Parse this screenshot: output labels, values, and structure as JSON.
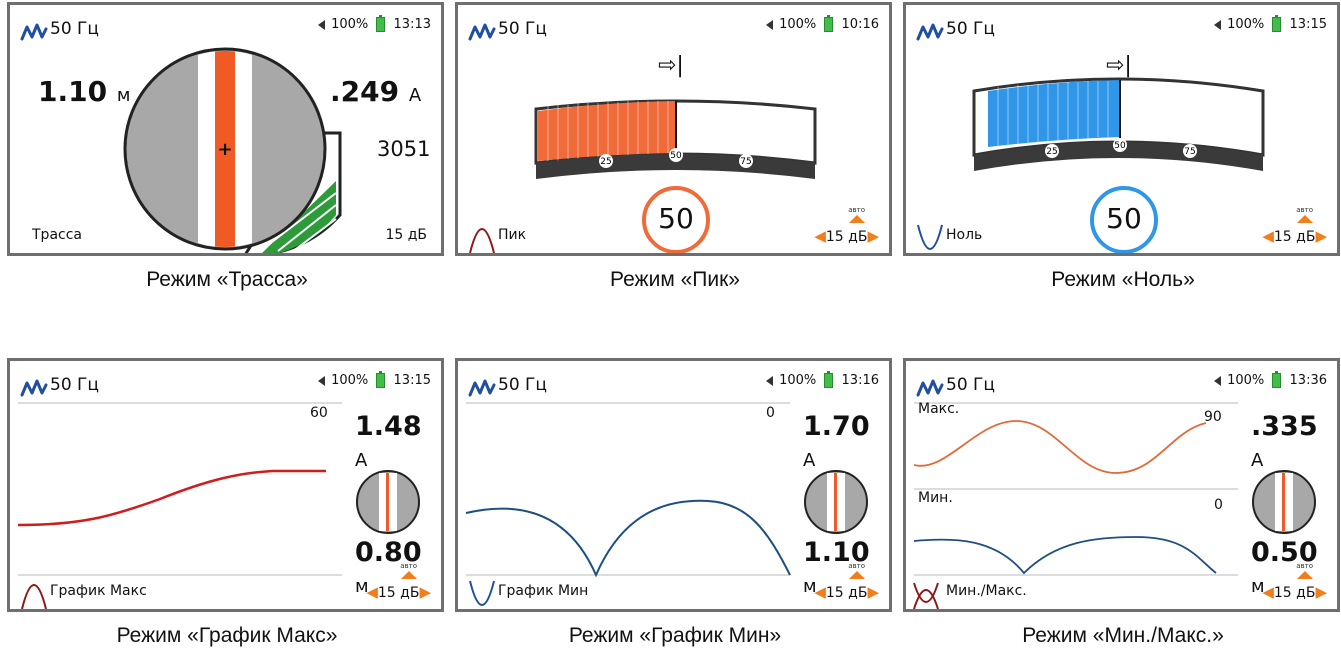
{
  "panels": [
    {
      "id": "trassa",
      "freq": "50 Гц",
      "battery": "100%",
      "time": "13:13",
      "depth_value": "1.10",
      "depth_unit": "м",
      "current_value": ".249",
      "current_unit": "A",
      "signal": "3051",
      "mode": "Трасса",
      "gain": "15 дБ",
      "caption": "Режим «Трасса»"
    },
    {
      "id": "pik",
      "freq": "50 Гц",
      "battery": "100%",
      "time": "10:16",
      "direction": "⇨|",
      "scale_ticks": [
        "25",
        "50",
        "75"
      ],
      "reading": "50",
      "reading_level": 0.5,
      "mode": "Пик",
      "auto": "авто",
      "gain": "15 дБ",
      "caption": "Режим «Пик»",
      "accent": "#f06a3a"
    },
    {
      "id": "nol",
      "freq": "50 Гц",
      "battery": "100%",
      "time": "13:15",
      "direction": "⇨|",
      "scale_ticks": [
        "25",
        "50",
        "75"
      ],
      "reading": "50",
      "reading_level": 0.5,
      "mode": "Ноль",
      "auto": "авто",
      "gain": "15 дБ",
      "caption": "Режим «Ноль»",
      "accent": "#2f96e8"
    },
    {
      "id": "graph_max",
      "freq": "50 Гц",
      "battery": "100%",
      "time": "13:15",
      "scale_label": "60",
      "current_value": "1.48",
      "current_unit": "A",
      "depth_value": "0.80",
      "depth_unit": "м",
      "mode": "График Макс",
      "auto": "авто",
      "gain": "15 дБ",
      "caption": "Режим «График Макс»"
    },
    {
      "id": "graph_min",
      "freq": "50 Гц",
      "battery": "100%",
      "time": "13:16",
      "scale_label": "0",
      "current_value": "1.70",
      "current_unit": "A",
      "depth_value": "1.10",
      "depth_unit": "м",
      "mode": "График Мин",
      "auto": "авто",
      "gain": "15 дБ",
      "caption": "Режим «График Мин»"
    },
    {
      "id": "minmax",
      "freq": "50 Гц",
      "battery": "100%",
      "time": "13:36",
      "max_label": "Макс.",
      "max_scale": "90",
      "min_label": "Мин.",
      "min_scale": "0",
      "current_value": ".335",
      "current_unit": "A",
      "depth_value": "0.50",
      "depth_unit": "м",
      "mode": "Мин./Макс.",
      "auto": "авто",
      "gain": "15 дБ",
      "caption": "Режим «Мин./Макс.»"
    }
  ]
}
